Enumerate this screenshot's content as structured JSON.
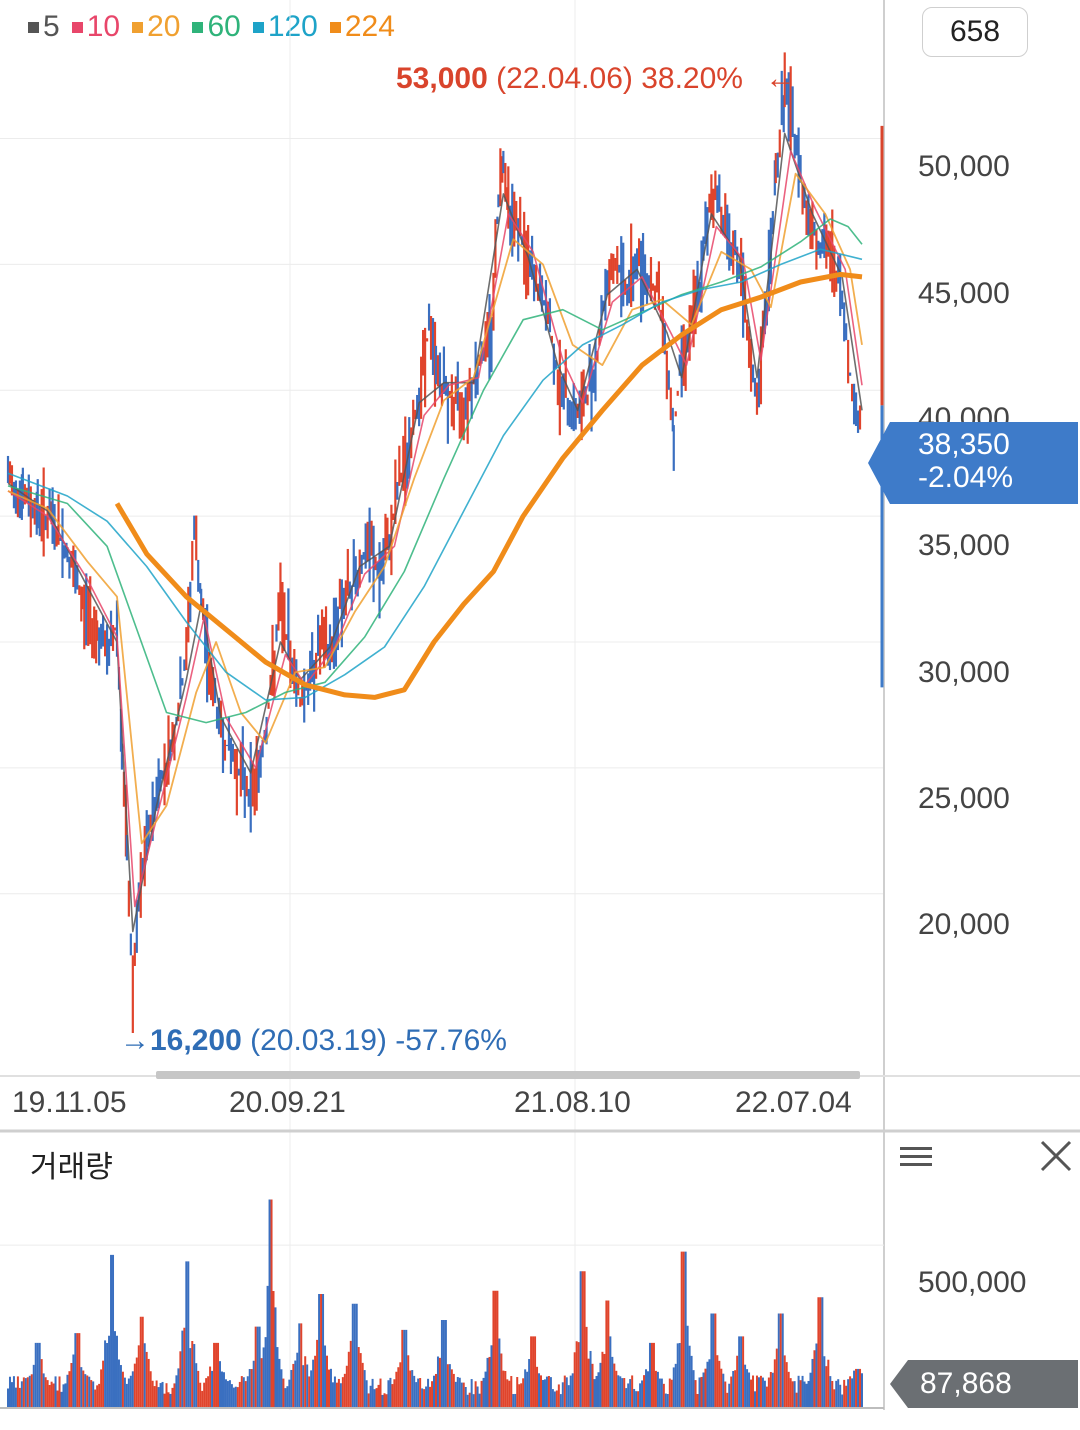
{
  "legend": [
    {
      "label": "5",
      "color": "#555555"
    },
    {
      "label": "10",
      "color": "#e8466a"
    },
    {
      "label": "20",
      "color": "#f0a030"
    },
    {
      "label": "60",
      "color": "#2fb37a"
    },
    {
      "label": "120",
      "color": "#1ea3c8"
    },
    {
      "label": "224",
      "color": "#f08c1a"
    }
  ],
  "count_box": "658",
  "high_annotation": {
    "price": "53,000",
    "date": "(22.04.06)",
    "pct": "38.20%",
    "arrow": "←"
  },
  "low_annotation": {
    "arrow": "→",
    "price": "16,200",
    "date": "(20.03.19)",
    "pct": "-57.76%"
  },
  "current_price": {
    "price": "38,350",
    "change": "-2.04%"
  },
  "volume_panel": {
    "title": "거래량",
    "current": "87,868",
    "tick": "500,000",
    "menu_icon": "menu-icon",
    "close_icon": "close-icon"
  },
  "chart_data": {
    "type": "line",
    "title": "",
    "y_ticks": [
      "50,000",
      "45,000",
      "40,000",
      "35,000",
      "30,000",
      "25,000",
      "20,000"
    ],
    "ylim": [
      13000,
      55500
    ],
    "x_ticks": [
      "19.11.05",
      "20.09.21",
      "21.08.10",
      "22.07.04"
    ],
    "price_points": [
      [
        0,
        36500
      ],
      [
        15,
        35800
      ],
      [
        30,
        35200
      ],
      [
        45,
        34800
      ],
      [
        60,
        33500
      ],
      [
        75,
        31500
      ],
      [
        90,
        30500
      ],
      [
        100,
        29500
      ],
      [
        110,
        30800
      ],
      [
        115,
        25500
      ],
      [
        120,
        21500
      ],
      [
        126,
        16200
      ],
      [
        132,
        19500
      ],
      [
        140,
        22000
      ],
      [
        150,
        24000
      ],
      [
        160,
        25200
      ],
      [
        170,
        26800
      ],
      [
        180,
        29500
      ],
      [
        188,
        34500
      ],
      [
        195,
        31500
      ],
      [
        205,
        28500
      ],
      [
        215,
        26500
      ],
      [
        225,
        25500
      ],
      [
        235,
        24800
      ],
      [
        245,
        24000
      ],
      [
        255,
        25200
      ],
      [
        265,
        28000
      ],
      [
        275,
        31500
      ],
      [
        285,
        29500
      ],
      [
        295,
        27800
      ],
      [
        305,
        28500
      ],
      [
        315,
        30000
      ],
      [
        325,
        29500
      ],
      [
        335,
        31500
      ],
      [
        345,
        32000
      ],
      [
        355,
        33000
      ],
      [
        365,
        33800
      ],
      [
        375,
        32500
      ],
      [
        385,
        34000
      ],
      [
        395,
        36500
      ],
      [
        405,
        37500
      ],
      [
        415,
        40000
      ],
      [
        425,
        42500
      ],
      [
        432,
        41000
      ],
      [
        440,
        40000
      ],
      [
        450,
        39500
      ],
      [
        460,
        39500
      ],
      [
        470,
        40500
      ],
      [
        480,
        41500
      ],
      [
        488,
        42500
      ],
      [
        495,
        47500
      ],
      [
        500,
        49500
      ],
      [
        505,
        47500
      ],
      [
        515,
        46500
      ],
      [
        525,
        45000
      ],
      [
        535,
        44000
      ],
      [
        545,
        43000
      ],
      [
        555,
        40500
      ],
      [
        565,
        39500
      ],
      [
        575,
        39000
      ],
      [
        585,
        39800
      ],
      [
        595,
        41500
      ],
      [
        605,
        44500
      ],
      [
        615,
        45000
      ],
      [
        625,
        44000
      ],
      [
        635,
        45200
      ],
      [
        645,
        44500
      ],
      [
        655,
        44000
      ],
      [
        665,
        41500
      ],
      [
        672,
        38200
      ],
      [
        680,
        41500
      ],
      [
        690,
        42500
      ],
      [
        700,
        44500
      ],
      [
        710,
        48000
      ],
      [
        718,
        47500
      ],
      [
        728,
        46000
      ],
      [
        738,
        45000
      ],
      [
        748,
        41500
      ],
      [
        756,
        39500
      ],
      [
        766,
        43500
      ],
      [
        775,
        48500
      ],
      [
        784,
        52000
      ],
      [
        792,
        50500
      ],
      [
        802,
        48000
      ],
      [
        812,
        46500
      ],
      [
        822,
        45500
      ],
      [
        832,
        45500
      ],
      [
        842,
        43500
      ],
      [
        852,
        40000
      ],
      [
        858,
        38800
      ],
      [
        862,
        38350
      ]
    ],
    "series": [
      {
        "name": "5",
        "points": [
          [
            0,
            36300
          ],
          [
            40,
            35200
          ],
          [
            80,
            32200
          ],
          [
            110,
            30000
          ],
          [
            126,
            18500
          ],
          [
            150,
            23500
          ],
          [
            180,
            28500
          ],
          [
            195,
            31500
          ],
          [
            215,
            27000
          ],
          [
            245,
            24800
          ],
          [
            275,
            30000
          ],
          [
            295,
            28500
          ],
          [
            325,
            29800
          ],
          [
            355,
            33000
          ],
          [
            385,
            33800
          ],
          [
            415,
            39500
          ],
          [
            440,
            40300
          ],
          [
            470,
            40300
          ],
          [
            500,
            47800
          ],
          [
            525,
            45300
          ],
          [
            555,
            41000
          ],
          [
            575,
            39200
          ],
          [
            605,
            43800
          ],
          [
            635,
            44800
          ],
          [
            665,
            42300
          ],
          [
            680,
            40500
          ],
          [
            710,
            47000
          ],
          [
            738,
            45300
          ],
          [
            756,
            40500
          ],
          [
            784,
            50200
          ],
          [
            812,
            47000
          ],
          [
            842,
            44500
          ],
          [
            862,
            39200
          ]
        ]
      },
      {
        "name": "10",
        "points": [
          [
            0,
            36000
          ],
          [
            40,
            35000
          ],
          [
            80,
            32500
          ],
          [
            110,
            30200
          ],
          [
            128,
            19500
          ],
          [
            150,
            23000
          ],
          [
            180,
            27800
          ],
          [
            198,
            31000
          ],
          [
            220,
            27000
          ],
          [
            250,
            25000
          ],
          [
            280,
            29500
          ],
          [
            300,
            28300
          ],
          [
            330,
            29800
          ],
          [
            360,
            32700
          ],
          [
            390,
            33800
          ],
          [
            420,
            39000
          ],
          [
            445,
            40200
          ],
          [
            475,
            40500
          ],
          [
            505,
            47000
          ],
          [
            530,
            45500
          ],
          [
            560,
            41200
          ],
          [
            580,
            39500
          ],
          [
            610,
            43500
          ],
          [
            640,
            44500
          ],
          [
            670,
            42200
          ],
          [
            685,
            41000
          ],
          [
            715,
            46500
          ],
          [
            742,
            45200
          ],
          [
            760,
            41200
          ],
          [
            790,
            49500
          ],
          [
            815,
            47200
          ],
          [
            845,
            44800
          ],
          [
            862,
            40200
          ]
        ]
      },
      {
        "name": "20",
        "points": [
          [
            0,
            36000
          ],
          [
            40,
            35300
          ],
          [
            80,
            33200
          ],
          [
            110,
            31800
          ],
          [
            135,
            22000
          ],
          [
            160,
            23500
          ],
          [
            190,
            28000
          ],
          [
            210,
            30000
          ],
          [
            235,
            27200
          ],
          [
            260,
            26000
          ],
          [
            290,
            28800
          ],
          [
            320,
            29000
          ],
          [
            350,
            31200
          ],
          [
            380,
            33000
          ],
          [
            410,
            36500
          ],
          [
            440,
            39600
          ],
          [
            470,
            40500
          ],
          [
            510,
            46000
          ],
          [
            540,
            45000
          ],
          [
            570,
            41800
          ],
          [
            600,
            41000
          ],
          [
            630,
            43200
          ],
          [
            660,
            43600
          ],
          [
            690,
            42600
          ],
          [
            720,
            45500
          ],
          [
            750,
            44800
          ],
          [
            770,
            43300
          ],
          [
            795,
            48600
          ],
          [
            825,
            47000
          ],
          [
            850,
            44800
          ],
          [
            862,
            41800
          ]
        ]
      },
      {
        "name": "60",
        "points": [
          [
            0,
            36200
          ],
          [
            60,
            35500
          ],
          [
            100,
            33800
          ],
          [
            130,
            30500
          ],
          [
            160,
            27200
          ],
          [
            200,
            26800
          ],
          [
            240,
            27200
          ],
          [
            280,
            28000
          ],
          [
            320,
            28400
          ],
          [
            360,
            30200
          ],
          [
            400,
            32800
          ],
          [
            440,
            36500
          ],
          [
            480,
            40000
          ],
          [
            520,
            42800
          ],
          [
            560,
            43200
          ],
          [
            600,
            42400
          ],
          [
            640,
            43100
          ],
          [
            680,
            43800
          ],
          [
            720,
            44300
          ],
          [
            760,
            44900
          ],
          [
            800,
            45900
          ],
          [
            830,
            46800
          ],
          [
            848,
            46500
          ],
          [
            862,
            45800
          ]
        ]
      },
      {
        "name": "120",
        "points": [
          [
            0,
            36700
          ],
          [
            60,
            35800
          ],
          [
            100,
            34800
          ],
          [
            140,
            33000
          ],
          [
            180,
            30800
          ],
          [
            220,
            28800
          ],
          [
            260,
            27700
          ],
          [
            300,
            27800
          ],
          [
            340,
            28700
          ],
          [
            380,
            29800
          ],
          [
            420,
            32200
          ],
          [
            460,
            35200
          ],
          [
            500,
            38200
          ],
          [
            540,
            40400
          ],
          [
            580,
            41800
          ],
          [
            620,
            42600
          ],
          [
            660,
            43500
          ],
          [
            700,
            44000
          ],
          [
            740,
            44300
          ],
          [
            780,
            45000
          ],
          [
            820,
            45600
          ],
          [
            862,
            45200
          ]
        ]
      },
      {
        "name": "224",
        "points": [
          [
            110,
            35500
          ],
          [
            140,
            33500
          ],
          [
            180,
            31800
          ],
          [
            220,
            30500
          ],
          [
            260,
            29200
          ],
          [
            300,
            28300
          ],
          [
            340,
            27900
          ],
          [
            370,
            27800
          ],
          [
            400,
            28100
          ],
          [
            430,
            30000
          ],
          [
            460,
            31500
          ],
          [
            490,
            32800
          ],
          [
            520,
            35000
          ],
          [
            560,
            37300
          ],
          [
            600,
            39200
          ],
          [
            640,
            41000
          ],
          [
            680,
            42200
          ],
          [
            720,
            43200
          ],
          [
            760,
            43700
          ],
          [
            800,
            44300
          ],
          [
            840,
            44600
          ],
          [
            862,
            44500
          ]
        ]
      }
    ],
    "volume_ticks": [
      "500,000"
    ],
    "volume_max": 700000,
    "volume_peaks": [
      [
        30,
        200000
      ],
      [
        70,
        230000
      ],
      [
        105,
        470000
      ],
      [
        135,
        280000
      ],
      [
        181,
        450000
      ],
      [
        210,
        200000
      ],
      [
        252,
        250000
      ],
      [
        265,
        640000
      ],
      [
        295,
        260000
      ],
      [
        316,
        350000
      ],
      [
        350,
        320000
      ],
      [
        400,
        240000
      ],
      [
        440,
        270000
      ],
      [
        492,
        360000
      ],
      [
        530,
        220000
      ],
      [
        580,
        420000
      ],
      [
        605,
        330000
      ],
      [
        650,
        200000
      ],
      [
        682,
        480000
      ],
      [
        712,
        290000
      ],
      [
        740,
        220000
      ],
      [
        780,
        290000
      ],
      [
        820,
        340000
      ],
      [
        858,
        120000
      ]
    ]
  }
}
